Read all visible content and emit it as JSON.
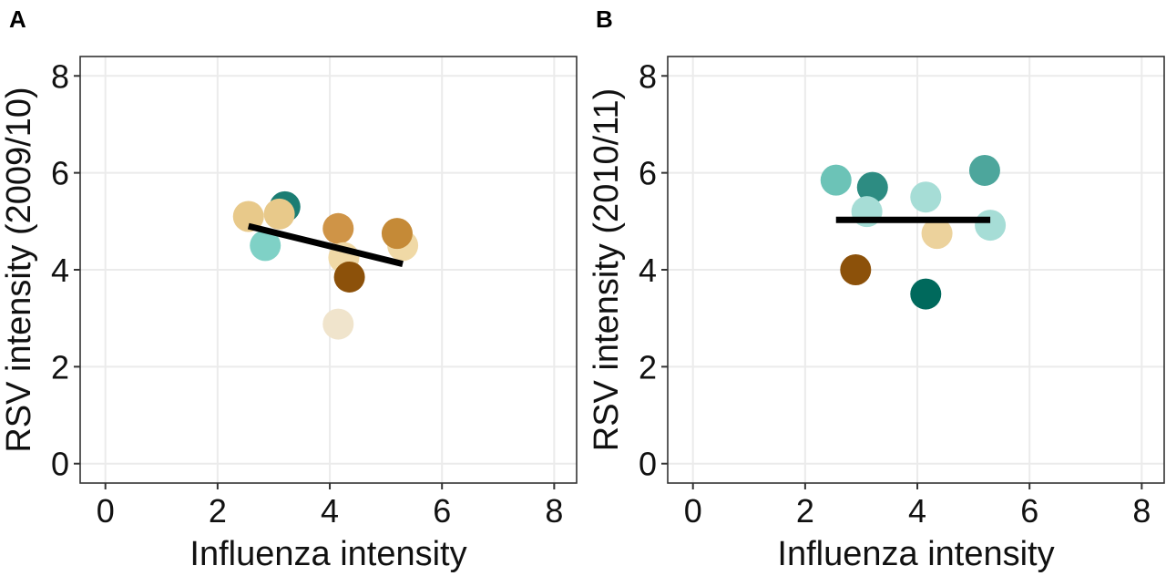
{
  "chart_data": [
    {
      "type": "scatter",
      "panel_label": "A",
      "xlabel": "Influenza intensity",
      "ylabel": "RSV intensity (2009/10)",
      "xlim": [
        -0.45,
        8.4
      ],
      "ylim": [
        -0.4,
        8.4
      ],
      "xticks": [
        0,
        2,
        4,
        6,
        8
      ],
      "yticks": [
        0,
        2,
        4,
        6,
        8
      ],
      "xtick_labels": [
        "0",
        "2",
        "4",
        "6",
        "8"
      ],
      "ytick_labels": [
        "0",
        "2",
        "4",
        "6",
        "8"
      ],
      "grid": true,
      "legend": "none",
      "points": [
        {
          "x": 5.3,
          "y": 4.5,
          "color": "#f0d9a6"
        },
        {
          "x": 3.2,
          "y": 5.3,
          "color": "#1b7d73"
        },
        {
          "x": 2.55,
          "y": 5.1,
          "color": "#e8c98a"
        },
        {
          "x": 3.1,
          "y": 5.15,
          "color": "#e8c98a"
        },
        {
          "x": 2.85,
          "y": 4.5,
          "color": "#7fd1c6"
        },
        {
          "x": 4.15,
          "y": 4.85,
          "color": "#cf9447"
        },
        {
          "x": 4.25,
          "y": 4.25,
          "color": "#f0d9a6"
        },
        {
          "x": 4.35,
          "y": 3.85,
          "color": "#8c510a"
        },
        {
          "x": 5.2,
          "y": 4.75,
          "color": "#c58a37"
        },
        {
          "x": 4.15,
          "y": 2.88,
          "color": "#f0e4cc"
        }
      ],
      "trend": {
        "x": [
          2.55,
          5.3
        ],
        "y": [
          4.9,
          4.12
        ],
        "color": "#000000"
      }
    },
    {
      "type": "scatter",
      "panel_label": "B",
      "xlabel": "Influenza intensity",
      "ylabel": "RSV intensity (2010/11)",
      "xlim": [
        -0.45,
        8.4
      ],
      "ylim": [
        -0.4,
        8.4
      ],
      "xticks": [
        0,
        2,
        4,
        6,
        8
      ],
      "yticks": [
        0,
        2,
        4,
        6,
        8
      ],
      "xtick_labels": [
        "0",
        "2",
        "4",
        "6",
        "8"
      ],
      "ytick_labels": [
        "0",
        "2",
        "4",
        "6",
        "8"
      ],
      "grid": true,
      "legend": "none",
      "points": [
        {
          "x": 2.55,
          "y": 5.85,
          "color": "#6cc3b7"
        },
        {
          "x": 3.2,
          "y": 5.7,
          "color": "#2d8c82"
        },
        {
          "x": 3.1,
          "y": 5.2,
          "color": "#a6ddd6"
        },
        {
          "x": 4.15,
          "y": 5.5,
          "color": "#a6ddd6"
        },
        {
          "x": 5.2,
          "y": 6.05,
          "color": "#4da69c"
        },
        {
          "x": 5.3,
          "y": 4.92,
          "color": "#a6ddd6"
        },
        {
          "x": 4.35,
          "y": 4.75,
          "color": "#ecd29c"
        },
        {
          "x": 2.9,
          "y": 4.0,
          "color": "#8c510a"
        },
        {
          "x": 4.15,
          "y": 3.5,
          "color": "#00695c"
        }
      ],
      "trend": {
        "x": [
          2.55,
          5.3
        ],
        "y": [
          5.03,
          5.03
        ],
        "color": "#000000"
      }
    }
  ]
}
